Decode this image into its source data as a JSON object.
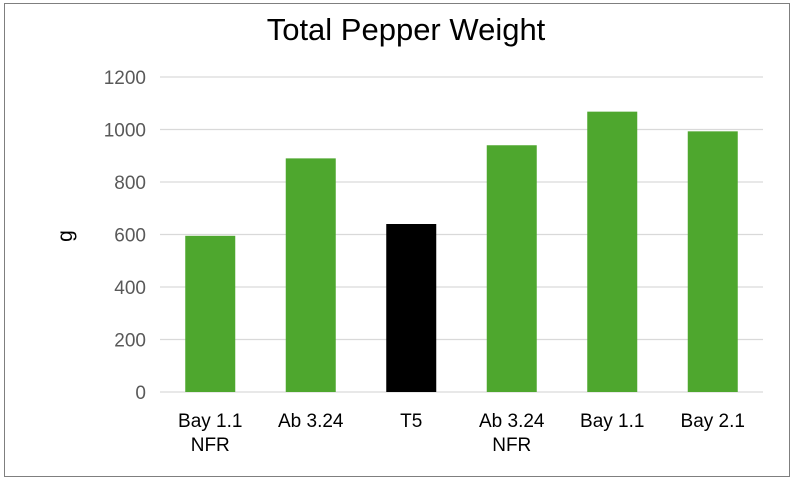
{
  "chart_data": {
    "type": "bar",
    "title": "Total Pepper Weight",
    "xlabel": "",
    "ylabel": "g",
    "ylim": [
      0,
      1200
    ],
    "yticks": [
      0,
      200,
      400,
      600,
      800,
      1000,
      1200
    ],
    "grid": true,
    "legend": "none",
    "categories": [
      [
        "Bay 1.1",
        "NFR"
      ],
      [
        "Ab 3.24"
      ],
      [
        "T5"
      ],
      [
        "Ab 3.24",
        "NFR"
      ],
      [
        "Bay 1.1"
      ],
      [
        "Bay 2.1"
      ]
    ],
    "values": [
      595,
      890,
      640,
      940,
      1068,
      993
    ],
    "colors": [
      "#4ea72e",
      "#4ea72e",
      "#000000",
      "#4ea72e",
      "#4ea72e",
      "#4ea72e"
    ]
  }
}
